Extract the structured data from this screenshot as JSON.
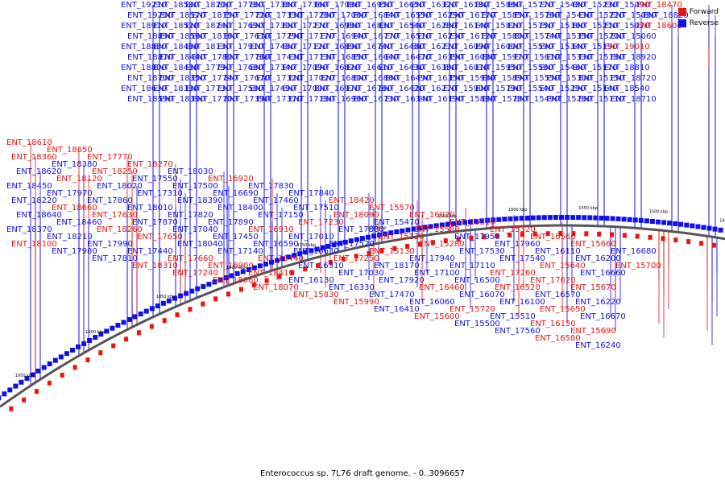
{
  "legend": {
    "items": [
      {
        "label": "Forward",
        "color": "#e8140f"
      },
      {
        "label": "Reverse",
        "color": "#1010e8"
      }
    ]
  },
  "caption": "Enterococcus sp. 7L76 draft genome. - 0..3096657",
  "colors": {
    "forward": "#e8140f",
    "reverse": "#1010e8",
    "backbone": "#555555"
  },
  "ticks": [
    "1950 kbp",
    "1900 kbp",
    "1850 kbp",
    "1800 kbp",
    "1750 kbp",
    "1700 kbp",
    "1650 kbp",
    "1600 kbp",
    "1550 kbp",
    "1500 kbp",
    "1450 kbp"
  ],
  "genes": [
    {
      "label": "ENT_19210",
      "strand": "reverse"
    },
    {
      "label": "ENT_19200",
      "strand": "reverse"
    },
    {
      "label": "ENT_18910",
      "strand": "reverse"
    },
    {
      "label": "ENT_18890",
      "strand": "reverse"
    },
    {
      "label": "ENT_18880",
      "strand": "reverse"
    },
    {
      "label": "ENT_18870",
      "strand": "reverse"
    },
    {
      "label": "ENT_18800",
      "strand": "reverse"
    },
    {
      "label": "ENT_18700",
      "strand": "reverse"
    },
    {
      "label": "ENT_18630",
      "strand": "reverse"
    },
    {
      "label": "ENT_18590",
      "strand": "reverse"
    },
    {
      "label": "ENT_18580",
      "strand": "reverse"
    },
    {
      "label": "ENT_18570",
      "strand": "reverse"
    },
    {
      "label": "ENT_18520",
      "strand": "reverse"
    },
    {
      "label": "ENT_18560",
      "strand": "reverse"
    },
    {
      "label": "ENT_18480",
      "strand": "reverse"
    },
    {
      "label": "ENT_18440",
      "strand": "reverse"
    },
    {
      "label": "ENT_18430",
      "strand": "reverse"
    },
    {
      "label": "ENT_18350",
      "strand": "reverse"
    },
    {
      "label": "ENT_18330",
      "strand": "reverse"
    },
    {
      "label": "ENT_18300",
      "strand": "reverse"
    },
    {
      "label": "ENT_18200",
      "strand": "reverse"
    },
    {
      "label": "ENT_18150",
      "strand": "reverse"
    },
    {
      "label": "ENT_18240",
      "strand": "reverse"
    },
    {
      "label": "ENT_18160",
      "strand": "reverse"
    },
    {
      "label": "ENT_18130",
      "strand": "reverse"
    },
    {
      "label": "ENT_17800",
      "strand": "reverse"
    },
    {
      "label": "ENT_17790",
      "strand": "reverse"
    },
    {
      "label": "ENT_17740",
      "strand": "reverse"
    },
    {
      "label": "ENT_17730",
      "strand": "reverse"
    },
    {
      "label": "ENT_17700",
      "strand": "reverse"
    },
    {
      "label": "ENT_17780",
      "strand": "reverse"
    },
    {
      "label": "ENT_17720",
      "strand": "reverse"
    },
    {
      "label": "ENT_17690",
      "strand": "reverse"
    },
    {
      "label": "ENT_17610",
      "strand": "reverse"
    },
    {
      "label": "ENT_17910",
      "strand": "reverse"
    },
    {
      "label": "ENT_17760",
      "strand": "reverse"
    },
    {
      "label": "ENT_17680",
      "strand": "reverse"
    },
    {
      "label": "ENT_17670",
      "strand": "reverse"
    },
    {
      "label": "ENT_17580",
      "strand": "reverse"
    },
    {
      "label": "ENT_17390",
      "strand": "reverse"
    },
    {
      "label": "ENT_17380",
      "strand": "reverse"
    },
    {
      "label": "ENT_17330",
      "strand": "reverse"
    },
    {
      "label": "ENT_17300",
      "strand": "reverse"
    },
    {
      "label": "ENT_17290",
      "strand": "reverse"
    },
    {
      "label": "ENT_17480",
      "strand": "reverse"
    },
    {
      "label": "ENT_17430",
      "strand": "reverse"
    },
    {
      "label": "ENT_17340",
      "strand": "reverse"
    },
    {
      "label": "ENT_17320",
      "strand": "reverse"
    },
    {
      "label": "ENT_17490",
      "strand": "reverse"
    },
    {
      "label": "ENT_17370",
      "strand": "reverse"
    },
    {
      "label": "ENT_17360",
      "strand": "reverse"
    },
    {
      "label": "ENT_17280",
      "strand": "reverse"
    },
    {
      "label": "ENT_17270",
      "strand": "reverse"
    },
    {
      "label": "ENT_17170",
      "strand": "reverse"
    },
    {
      "label": "ENT_17120",
      "strand": "reverse"
    },
    {
      "label": "ENT_17130",
      "strand": "reverse"
    },
    {
      "label": "ENT_17090",
      "strand": "reverse"
    },
    {
      "label": "ENT_17020",
      "strand": "reverse"
    },
    {
      "label": "ENT_17000",
      "strand": "reverse"
    },
    {
      "label": "ENT_17180",
      "strand": "reverse"
    },
    {
      "label": "ENT_17080",
      "strand": "reverse"
    },
    {
      "label": "ENT_17060",
      "strand": "reverse"
    },
    {
      "label": "ENT_16980",
      "strand": "reverse"
    },
    {
      "label": "ENT_16940",
      "strand": "reverse"
    },
    {
      "label": "ENT_16890",
      "strand": "reverse"
    },
    {
      "label": "ENT_16850",
      "strand": "reverse"
    },
    {
      "label": "ENT_16820",
      "strand": "reverse"
    },
    {
      "label": "ENT_16800",
      "strand": "reverse"
    },
    {
      "label": "ENT_16970",
      "strand": "reverse"
    },
    {
      "label": "ENT_16960",
      "strand": "reverse"
    },
    {
      "label": "ENT_16950",
      "strand": "reverse"
    },
    {
      "label": "ENT_16840",
      "strand": "reverse"
    },
    {
      "label": "ENT_16830",
      "strand": "reverse"
    },
    {
      "label": "ENT_16770",
      "strand": "reverse"
    },
    {
      "label": "ENT_16740",
      "strand": "reverse"
    },
    {
      "label": "ENT_16640",
      "strand": "reverse"
    },
    {
      "label": "ENT_16610",
      "strand": "reverse"
    },
    {
      "label": "ENT_16860",
      "strand": "reverse"
    },
    {
      "label": "ENT_16760",
      "strand": "reverse"
    },
    {
      "label": "ENT_16730",
      "strand": "reverse"
    },
    {
      "label": "ENT_16650",
      "strand": "reverse"
    },
    {
      "label": "ENT_16550",
      "strand": "reverse"
    },
    {
      "label": "ENT_16540",
      "strand": "reverse"
    },
    {
      "label": "ENT_16510",
      "strand": "reverse"
    },
    {
      "label": "ENT_16480",
      "strand": "reverse"
    },
    {
      "label": "ENT_16470",
      "strand": "reverse"
    },
    {
      "label": "ENT_16430",
      "strand": "reverse"
    },
    {
      "label": "ENT_16490",
      "strand": "reverse"
    },
    {
      "label": "ENT_16420",
      "strand": "reverse"
    },
    {
      "label": "ENT_16340",
      "strand": "reverse"
    },
    {
      "label": "ENT_16320",
      "strand": "reverse"
    },
    {
      "label": "ENT_16290",
      "strand": "reverse"
    },
    {
      "label": "ENT_16280",
      "strand": "reverse"
    },
    {
      "label": "ENT_16230",
      "strand": "reverse"
    },
    {
      "label": "ENT_16210",
      "strand": "reverse"
    },
    {
      "label": "ENT_16390",
      "strand": "reverse"
    },
    {
      "label": "ENT_16380",
      "strand": "reverse"
    },
    {
      "label": "ENT_16350",
      "strand": "reverse"
    },
    {
      "label": "ENT_16270",
      "strand": "reverse"
    },
    {
      "label": "ENT_16190",
      "strand": "reverse"
    },
    {
      "label": "ENT_16180",
      "strand": "reverse"
    },
    {
      "label": "ENT_16170",
      "strand": "reverse"
    },
    {
      "label": "ENT_16140",
      "strand": "reverse"
    },
    {
      "label": "ENT_16120",
      "strand": "reverse"
    },
    {
      "label": "ENT_16090",
      "strand": "reverse"
    },
    {
      "label": "ENT_16080",
      "strand": "reverse"
    },
    {
      "label": "ENT_16010",
      "strand": "reverse"
    },
    {
      "label": "ENT_15980",
      "strand": "reverse"
    },
    {
      "label": "ENT_15900",
      "strand": "reverse"
    },
    {
      "label": "ENT_15880",
      "strand": "reverse"
    },
    {
      "label": "ENT_15860",
      "strand": "reverse"
    },
    {
      "label": "ENT_15850",
      "strand": "reverse"
    },
    {
      "label": "ENT_15820",
      "strand": "reverse"
    },
    {
      "label": "ENT_15800",
      "strand": "reverse"
    },
    {
      "label": "ENT_16000",
      "strand": "reverse"
    },
    {
      "label": "ENT_15970",
      "strand": "reverse"
    },
    {
      "label": "ENT_15950",
      "strand": "reverse"
    },
    {
      "label": "ENT_15890",
      "strand": "reverse"
    },
    {
      "label": "ENT_15790",
      "strand": "reverse"
    },
    {
      "label": "ENT_15780",
      "strand": "reverse"
    },
    {
      "label": "ENT_15770",
      "strand": "reverse"
    },
    {
      "label": "ENT_15760",
      "strand": "reverse"
    },
    {
      "label": "ENT_15750",
      "strand": "reverse"
    },
    {
      "label": "ENT_15740",
      "strand": "reverse"
    },
    {
      "label": "ENT_15590",
      "strand": "reverse"
    },
    {
      "label": "ENT_15610",
      "strand": "reverse"
    },
    {
      "label": "ENT_15560",
      "strand": "reverse"
    },
    {
      "label": "ENT_15550",
      "strand": "reverse"
    },
    {
      "label": "ENT_15540",
      "strand": "reverse"
    },
    {
      "label": "ENT_15490",
      "strand": "reverse"
    },
    {
      "label": "ENT_15480",
      "strand": "reverse"
    },
    {
      "label": "ENT_15430",
      "strand": "reverse"
    },
    {
      "label": "ENT_15360",
      "strand": "reverse"
    },
    {
      "label": "ENT_15350",
      "strand": "reverse"
    },
    {
      "label": "ENT_15340",
      "strand": "reverse"
    },
    {
      "label": "ENT_15330",
      "strand": "reverse"
    },
    {
      "label": "ENT_15460",
      "strand": "reverse"
    },
    {
      "label": "ENT_15300",
      "strand": "reverse"
    },
    {
      "label": "ENT_15290",
      "strand": "reverse"
    },
    {
      "label": "ENT_15260",
      "strand": "reverse"
    },
    {
      "label": "ENT_15230",
      "strand": "reverse"
    },
    {
      "label": "ENT_15220",
      "strand": "reverse"
    },
    {
      "label": "ENT_15210",
      "strand": "reverse"
    },
    {
      "label": "ENT_15200",
      "strand": "reverse"
    },
    {
      "label": "ENT_15190",
      "strand": "reverse"
    },
    {
      "label": "ENT_15180",
      "strand": "reverse"
    },
    {
      "label": "ENT_15170",
      "strand": "reverse"
    },
    {
      "label": "ENT_15150",
      "strand": "reverse"
    },
    {
      "label": "ENT_15140",
      "strand": "reverse"
    },
    {
      "label": "ENT_15110",
      "strand": "reverse"
    },
    {
      "label": "ENT_15090",
      "strand": "reverse"
    },
    {
      "label": "ENT_15080",
      "strand": "reverse"
    },
    {
      "label": "ENT_15070",
      "strand": "reverse"
    },
    {
      "label": "ENT_15060",
      "strand": "reverse"
    },
    {
      "label": "ENT_19010",
      "strand": "forward"
    },
    {
      "label": "ENT_18920",
      "strand": "reverse"
    },
    {
      "label": "ENT_18810",
      "strand": "reverse"
    },
    {
      "label": "ENT_18720",
      "strand": "reverse"
    },
    {
      "label": "ENT_18540",
      "strand": "reverse"
    },
    {
      "label": "ENT_18710",
      "strand": "reverse"
    },
    {
      "label": "ENT_18470",
      "strand": "forward"
    },
    {
      "label": "ENT_18820",
      "strand": "reverse"
    },
    {
      "label": "ENT_18600",
      "strand": "forward"
    },
    {
      "label": "ENT_18610",
      "strand": "forward"
    },
    {
      "label": "ENT_18360",
      "strand": "forward"
    },
    {
      "label": "ENT_18620",
      "strand": "reverse"
    },
    {
      "label": "ENT_18450",
      "strand": "reverse"
    },
    {
      "label": "ENT_18220",
      "strand": "reverse"
    },
    {
      "label": "ENT_18640",
      "strand": "reverse"
    },
    {
      "label": "ENT_18370",
      "strand": "reverse"
    },
    {
      "label": "ENT_18100",
      "strand": "forward"
    },
    {
      "label": "ENT_18650",
      "strand": "forward"
    },
    {
      "label": "ENT_18380",
      "strand": "reverse"
    },
    {
      "label": "ENT_18120",
      "strand": "forward"
    },
    {
      "label": "ENT_17970",
      "strand": "reverse"
    },
    {
      "label": "ENT_18660",
      "strand": "forward"
    },
    {
      "label": "ENT_18460",
      "strand": "reverse"
    },
    {
      "label": "ENT_18210",
      "strand": "reverse"
    },
    {
      "label": "ENT_17980",
      "strand": "reverse"
    },
    {
      "label": "ENT_17770",
      "strand": "forward"
    },
    {
      "label": "ENT_18250",
      "strand": "forward"
    },
    {
      "label": "ENT_18020",
      "strand": "reverse"
    },
    {
      "label": "ENT_17860",
      "strand": "reverse"
    },
    {
      "label": "ENT_17630",
      "strand": "forward"
    },
    {
      "label": "ENT_18260",
      "strand": "forward"
    },
    {
      "label": "ENT_17990",
      "strand": "reverse"
    },
    {
      "label": "ENT_17810",
      "strand": "reverse"
    },
    {
      "label": "ENT_18270",
      "strand": "forward"
    },
    {
      "label": "ENT_17550",
      "strand": "reverse"
    },
    {
      "label": "ENT_17310",
      "strand": "reverse"
    },
    {
      "label": "ENT_18010",
      "strand": "reverse"
    },
    {
      "label": "ENT_17870",
      "strand": "reverse"
    },
    {
      "label": "ENT_17650",
      "strand": "forward"
    },
    {
      "label": "ENT_17440",
      "strand": "reverse"
    },
    {
      "label": "ENT_18310",
      "strand": "forward"
    },
    {
      "label": "ENT_18030",
      "strand": "reverse"
    },
    {
      "label": "ENT_17500",
      "strand": "reverse"
    },
    {
      "label": "ENT_18390",
      "strand": "reverse"
    },
    {
      "label": "ENT_17820",
      "strand": "reverse"
    },
    {
      "label": "ENT_17040",
      "strand": "reverse"
    },
    {
      "label": "ENT_18040",
      "strand": "reverse"
    },
    {
      "label": "ENT_17660",
      "strand": "forward"
    },
    {
      "label": "ENT_17240",
      "strand": "forward"
    },
    {
      "label": "ENT_16920",
      "strand": "forward"
    },
    {
      "label": "ENT_16690",
      "strand": "reverse"
    },
    {
      "label": "ENT_18400",
      "strand": "reverse"
    },
    {
      "label": "ENT_17890",
      "strand": "reverse"
    },
    {
      "label": "ENT_17450",
      "strand": "reverse"
    },
    {
      "label": "ENT_17140",
      "strand": "reverse"
    },
    {
      "label": "ENT_16900",
      "strand": "forward"
    },
    {
      "label": "ENT_18060",
      "strand": "forward"
    },
    {
      "label": "ENT_17830",
      "strand": "reverse"
    },
    {
      "label": "ENT_17460",
      "strand": "reverse"
    },
    {
      "label": "ENT_17150",
      "strand": "reverse"
    },
    {
      "label": "ENT_16910",
      "strand": "forward"
    },
    {
      "label": "ENT_16590",
      "strand": "reverse"
    },
    {
      "label": "ENT_16440",
      "strand": "forward"
    },
    {
      "label": "ENT_18410",
      "strand": "forward"
    },
    {
      "label": "ENT_18070",
      "strand": "forward"
    },
    {
      "label": "ENT_17840",
      "strand": "reverse"
    },
    {
      "label": "ENT_17510",
      "strand": "reverse"
    },
    {
      "label": "ENT_17230",
      "strand": "forward"
    },
    {
      "label": "ENT_17010",
      "strand": "reverse"
    },
    {
      "label": "ENT_16630",
      "strand": "reverse"
    },
    {
      "label": "ENT_16310",
      "strand": "reverse"
    },
    {
      "label": "ENT_16130",
      "strand": "reverse"
    },
    {
      "label": "ENT_15830",
      "strand": "forward"
    },
    {
      "label": "ENT_18420",
      "strand": "forward"
    },
    {
      "label": "ENT_18090",
      "strand": "forward"
    },
    {
      "label": "ENT_17880",
      "strand": "reverse"
    },
    {
      "label": "ENT_17520",
      "strand": "reverse"
    },
    {
      "label": "ENT_17250",
      "strand": "forward"
    },
    {
      "label": "ENT_17030",
      "strand": "reverse"
    },
    {
      "label": "ENT_16330",
      "strand": "reverse"
    },
    {
      "label": "ENT_15990",
      "strand": "forward"
    },
    {
      "label": "ENT_15570",
      "strand": "forward"
    },
    {
      "label": "ENT_15470",
      "strand": "reverse"
    },
    {
      "label": "ENT_15120",
      "strand": "forward"
    },
    {
      "label": "ENT_15130",
      "strand": "forward"
    },
    {
      "label": "ENT_18170",
      "strand": "reverse"
    },
    {
      "label": "ENT_17920",
      "strand": "reverse"
    },
    {
      "label": "ENT_17470",
      "strand": "reverse"
    },
    {
      "label": "ENT_16410",
      "strand": "reverse"
    },
    {
      "label": "ENT_16020",
      "strand": "forward"
    },
    {
      "label": "ENT_15580",
      "strand": "forward"
    },
    {
      "label": "ENT_15280",
      "strand": "forward"
    },
    {
      "label": "ENT_17940",
      "strand": "reverse"
    },
    {
      "label": "ENT_17100",
      "strand": "reverse"
    },
    {
      "label": "ENT_16460",
      "strand": "forward"
    },
    {
      "label": "ENT_16060",
      "strand": "reverse"
    },
    {
      "label": "ENT_15600",
      "strand": "forward"
    },
    {
      "label": "ENT_15310",
      "strand": "forward"
    },
    {
      "label": "ENT_17950",
      "strand": "reverse"
    },
    {
      "label": "ENT_17530",
      "strand": "reverse"
    },
    {
      "label": "ENT_17110",
      "strand": "reverse"
    },
    {
      "label": "ENT_16500",
      "strand": "reverse"
    },
    {
      "label": "ENT_16070",
      "strand": "reverse"
    },
    {
      "label": "ENT_15720",
      "strand": "forward"
    },
    {
      "label": "ENT_15500",
      "strand": "reverse"
    },
    {
      "label": "ENT_15320",
      "strand": "forward"
    },
    {
      "label": "ENT_17960",
      "strand": "reverse"
    },
    {
      "label": "ENT_17540",
      "strand": "reverse"
    },
    {
      "label": "ENT_17260",
      "strand": "forward"
    },
    {
      "label": "ENT_16520",
      "strand": "forward"
    },
    {
      "label": "ENT_16100",
      "strand": "reverse"
    },
    {
      "label": "ENT_15510",
      "strand": "reverse"
    },
    {
      "label": "ENT_17560",
      "strand": "reverse"
    },
    {
      "label": "ENT_16560",
      "strand": "forward"
    },
    {
      "label": "ENT_16110",
      "strand": "reverse"
    },
    {
      "label": "ENT_15640",
      "strand": "forward"
    },
    {
      "label": "ENT_17620",
      "strand": "forward"
    },
    {
      "label": "ENT_16570",
      "strand": "reverse"
    },
    {
      "label": "ENT_15650",
      "strand": "forward"
    },
    {
      "label": "ENT_16150",
      "strand": "forward"
    },
    {
      "label": "ENT_16580",
      "strand": "forward"
    },
    {
      "label": "ENT_15660",
      "strand": "forward"
    },
    {
      "label": "ENT_16200",
      "strand": "reverse"
    },
    {
      "label": "ENT_16660",
      "strand": "reverse"
    },
    {
      "label": "ENT_15670",
      "strand": "forward"
    },
    {
      "label": "ENT_16220",
      "strand": "reverse"
    },
    {
      "label": "ENT_16670",
      "strand": "reverse"
    },
    {
      "label": "ENT_15690",
      "strand": "forward"
    },
    {
      "label": "ENT_16240",
      "strand": "reverse"
    },
    {
      "label": "ENT_16680",
      "strand": "reverse"
    },
    {
      "label": "ENT_15700",
      "strand": "forward"
    }
  ]
}
